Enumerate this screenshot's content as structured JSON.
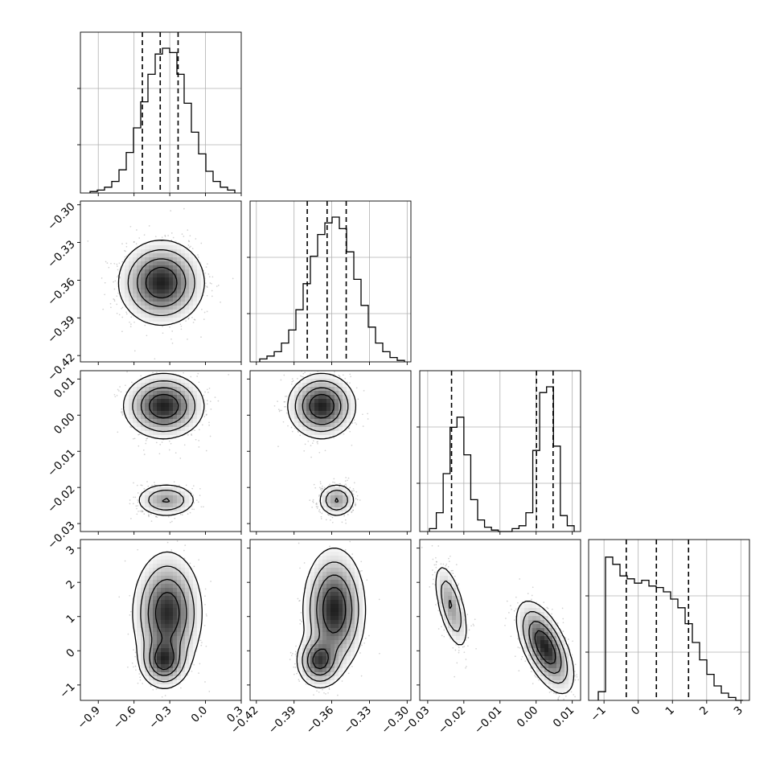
{
  "chart_data": {
    "type": "corner",
    "title": "",
    "parameters": [
      {
        "id": "p0",
        "label": "",
        "range": [
          -1.05,
          0.3
        ],
        "ticks": [
          -0.9,
          -0.6,
          -0.3,
          0.0,
          0.3
        ],
        "tick_labels": [
          "−0.9",
          "−0.6",
          "−0.3",
          "0.0",
          "0.3"
        ],
        "quantiles": [
          -0.53,
          -0.38,
          -0.23
        ]
      },
      {
        "id": "p1",
        "label": "",
        "range": [
          -0.425,
          -0.297
        ],
        "ticks": [
          -0.42,
          -0.39,
          -0.36,
          -0.33,
          -0.3
        ],
        "tick_labels": [
          "−0.42",
          "−0.39",
          "−0.36",
          "−0.33",
          "−0.30"
        ],
        "quantiles": [
          -0.3795,
          -0.3637,
          -0.3485
        ]
      },
      {
        "id": "p2",
        "label": "",
        "range": [
          -0.0322,
          0.0123
        ],
        "ticks": [
          -0.03,
          -0.02,
          -0.01,
          0.0,
          0.01
        ],
        "tick_labels": [
          "−0.03",
          "−0.02",
          "−0.01",
          "0.00",
          "0.01"
        ],
        "quantiles": [
          -0.0234,
          0.0001,
          0.0047
        ]
      },
      {
        "id": "p3",
        "label": "",
        "range": [
          -1.45,
          3.25
        ],
        "ticks": [
          -1,
          0,
          1,
          2,
          3
        ],
        "tick_labels": [
          "−1",
          "0",
          "1",
          "2",
          "3"
        ],
        "quantiles": [
          -0.35,
          0.53,
          1.47
        ]
      }
    ],
    "histograms": {
      "p0": [
        0.01,
        0.02,
        0.04,
        0.08,
        0.16,
        0.28,
        0.45,
        0.63,
        0.82,
        0.96,
        1.0,
        0.97,
        0.82,
        0.62,
        0.42,
        0.27,
        0.15,
        0.08,
        0.04,
        0.02
      ],
      "p1": [
        0.02,
        0.04,
        0.07,
        0.13,
        0.22,
        0.36,
        0.54,
        0.73,
        0.88,
        0.96,
        1.0,
        0.92,
        0.76,
        0.57,
        0.39,
        0.24,
        0.13,
        0.07,
        0.03,
        0.01
      ],
      "p2": [
        0.02,
        0.13,
        0.4,
        0.72,
        0.79,
        0.53,
        0.22,
        0.08,
        0.03,
        0.01,
        0.0,
        0.0,
        0.02,
        0.04,
        0.13,
        0.56,
        0.96,
        1.0,
        0.59,
        0.11,
        0.04
      ],
      "p3": [
        0.06,
        0.99,
        0.94,
        0.86,
        0.84,
        0.81,
        0.83,
        0.79,
        0.78,
        0.75,
        0.7,
        0.64,
        0.53,
        0.4,
        0.28,
        0.18,
        0.1,
        0.05,
        0.02,
        0.0
      ]
    },
    "joint_modes": {
      "p1|p0": [
        {
          "mean": [
            -0.37,
            -0.362
          ],
          "sd": [
            0.16,
            0.015
          ],
          "w": 1.0
        }
      ],
      "p2|p0": [
        {
          "mean": [
            -0.35,
            0.0025
          ],
          "sd": [
            0.15,
            0.004
          ],
          "w": 0.68
        },
        {
          "mean": [
            -0.33,
            -0.0235
          ],
          "sd": [
            0.12,
            0.0022
          ],
          "w": 0.32
        }
      ],
      "p2|p1": [
        {
          "mean": [
            -0.368,
            0.0025
          ],
          "sd": [
            0.012,
            0.004
          ],
          "w": 0.68
        },
        {
          "mean": [
            -0.356,
            -0.0235
          ],
          "sd": [
            0.007,
            0.0022
          ],
          "w": 0.32
        }
      ],
      "p3|p0": [
        {
          "mean": [
            -0.35,
            -0.3
          ],
          "sd": [
            0.09,
            0.35
          ],
          "w": 0.45
        },
        {
          "mean": [
            -0.32,
            1.1
          ],
          "sd": [
            0.13,
            0.8
          ],
          "w": 0.55
        }
      ],
      "p3|p1": [
        {
          "mean": [
            -0.37,
            -0.3
          ],
          "sd": [
            0.008,
            0.35
          ],
          "w": 0.45
        },
        {
          "mean": [
            -0.358,
            1.2
          ],
          "sd": [
            0.011,
            0.8
          ],
          "w": 0.55
        }
      ],
      "p3|p2": [
        {
          "mean": [
            -0.0235,
            1.3
          ],
          "sd": [
            0.0022,
            0.6
          ],
          "w": 0.32,
          "rho": -0.6
        },
        {
          "mean": [
            0.0025,
            0.1
          ],
          "sd": [
            0.0035,
            0.6
          ],
          "w": 0.68,
          "rho": -0.6
        }
      ]
    },
    "grid": true,
    "legend": null
  }
}
